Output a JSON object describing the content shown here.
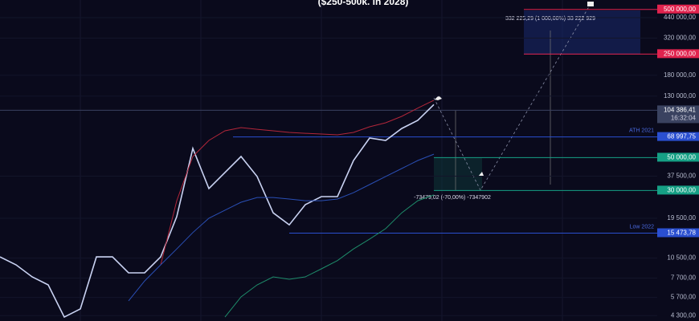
{
  "chart_data": {
    "type": "line",
    "title": "($250-500k. in 2028)",
    "log_scale": true,
    "ylim": [
      3950,
      579000
    ],
    "yticks": [
      {
        "value": 440000,
        "label": "440 000,00"
      },
      {
        "value": 320000,
        "label": "320 000,00"
      },
      {
        "value": 180000,
        "label": "180 000,00"
      },
      {
        "value": 130000,
        "label": "130 000,00"
      },
      {
        "value": 37500,
        "label": "37 500,00"
      },
      {
        "value": 19500,
        "label": "19 500,00"
      },
      {
        "value": 10500,
        "label": "10 500,00"
      },
      {
        "value": 7700,
        "label": "7 700,00"
      },
      {
        "value": 5700,
        "label": "5 700,00"
      },
      {
        "value": 4300,
        "label": "4 300,00"
      }
    ],
    "series": [
      {
        "color": "#c9d2f2",
        "values": [
          10700,
          9460,
          7840,
          6920,
          4200,
          4760,
          10700,
          10700,
          8350,
          8350,
          10700,
          20000,
          57700,
          30900,
          39700,
          50900,
          37300,
          21200,
          17600,
          24100,
          27300,
          27300,
          47800,
          67800,
          65300,
          78700,
          89200,
          114000
        ]
      },
      {
        "color": "#b2263a",
        "values": [
          null,
          null,
          null,
          null,
          null,
          null,
          null,
          null,
          null,
          null,
          9460,
          25600,
          50900,
          65300,
          75900,
          79700,
          77700,
          75900,
          74000,
          73000,
          72200,
          71300,
          74000,
          80700,
          85900,
          94900,
          108000,
          122000
        ]
      },
      {
        "color": "#2a4fb5",
        "values": [
          null,
          null,
          null,
          null,
          null,
          null,
          null,
          null,
          5400,
          7360,
          9460,
          12100,
          15600,
          19500,
          22100,
          25000,
          26900,
          26900,
          26300,
          25600,
          25600,
          26300,
          29000,
          32900,
          37300,
          42200,
          47800,
          52800
        ]
      },
      {
        "color": "#1e8c6a",
        "values": [
          null,
          null,
          null,
          null,
          null,
          null,
          null,
          null,
          null,
          null,
          null,
          null,
          null,
          null,
          4200,
          5740,
          6920,
          7840,
          7550,
          7840,
          8880,
          10100,
          12100,
          14100,
          16600,
          21200,
          25600,
          28000
        ]
      }
    ],
    "levels": [
      {
        "value": 500000,
        "label": "500 000,00",
        "color": "#e0234e"
      },
      {
        "value": 250000,
        "label": "250 000,00",
        "color": "#e0234e"
      },
      {
        "value": 104386.41,
        "label": "104 386,41",
        "time": "16:32:04",
        "color": "#3a4260"
      },
      {
        "value": 68997.75,
        "label": "68 997,75",
        "name": "ATH 2021",
        "color": "#2a4fd0"
      },
      {
        "value": 50000,
        "label": "50 000,00",
        "color": "#16a085"
      },
      {
        "value": 30000,
        "label": "30 000,00",
        "color": "#16a085"
      },
      {
        "value": 15473.78,
        "label": "15 473,78",
        "name": "Low 2022",
        "color": "#2a4fd0"
      }
    ],
    "annotations": [
      {
        "text": "-73479,02 (-70,00%) -7347902"
      },
      {
        "text": "332 225,29 (1 000,00%) 33 222 929"
      }
    ]
  }
}
